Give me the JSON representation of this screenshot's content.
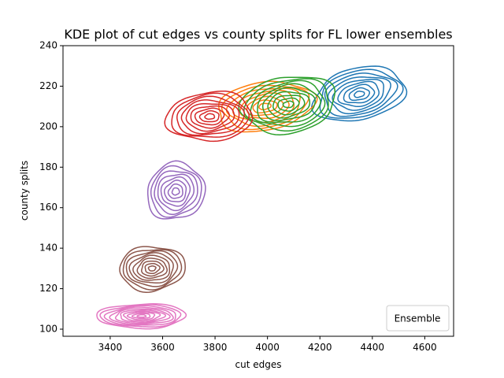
{
  "chart_data": {
    "type": "kde-contour",
    "title": "KDE plot of cut edges vs county splits for FL lower ensembles",
    "xlabel": "cut edges",
    "ylabel": "county splits",
    "xlim": [
      3220,
      4710
    ],
    "ylim": [
      96.5,
      240
    ],
    "x_ticks": [
      3400,
      3600,
      3800,
      4000,
      4200,
      4400,
      4600
    ],
    "y_ticks": [
      100,
      120,
      140,
      160,
      180,
      200,
      220,
      240
    ],
    "grid": false,
    "legend": {
      "title": "Ensemble",
      "placement": "lower-right",
      "entries": []
    },
    "series": [
      {
        "color": "#1f77b4",
        "center": [
          4350,
          216
        ],
        "spread": [
          175,
          13
        ],
        "tilt": 0.16,
        "levels": 9
      },
      {
        "color": "#ff7f0e",
        "center": [
          3990,
          210
        ],
        "spread": [
          185,
          12
        ],
        "tilt": 0.12,
        "levels": 8
      },
      {
        "color": "#2ca02c",
        "center": [
          4080,
          211
        ],
        "spread": [
          180,
          14
        ],
        "tilt": 0.1,
        "levels": 9
      },
      {
        "color": "#d62728",
        "center": [
          3780,
          205
        ],
        "spread": [
          165,
          12
        ],
        "tilt": 0.05,
        "levels": 9
      },
      {
        "color": "#9467bd",
        "center": [
          3650,
          168
        ],
        "spread": [
          110,
          14
        ],
        "tilt": 0.08,
        "levels": 8
      },
      {
        "color": "#8c564b",
        "center": [
          3560,
          130
        ],
        "spread": [
          125,
          11
        ],
        "tilt": 0.04,
        "levels": 9
      },
      {
        "color": "#e377c2",
        "center": [
          3520,
          106.5
        ],
        "spread": [
          170,
          6
        ],
        "tilt": 0.01,
        "levels": 10
      }
    ]
  }
}
